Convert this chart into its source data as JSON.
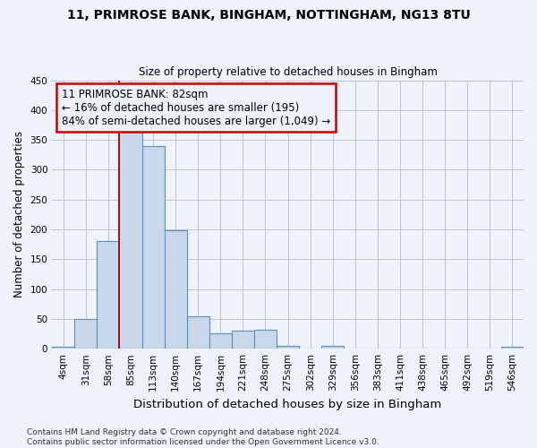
{
  "title1": "11, PRIMROSE BANK, BINGHAM, NOTTINGHAM, NG13 8TU",
  "title2": "Size of property relative to detached houses in Bingham",
  "xlabel": "Distribution of detached houses by size in Bingham",
  "ylabel": "Number of detached properties",
  "categories": [
    "4sqm",
    "31sqm",
    "58sqm",
    "85sqm",
    "113sqm",
    "140sqm",
    "167sqm",
    "194sqm",
    "221sqm",
    "248sqm",
    "275sqm",
    "302sqm",
    "329sqm",
    "356sqm",
    "383sqm",
    "411sqm",
    "438sqm",
    "465sqm",
    "492sqm",
    "519sqm",
    "546sqm"
  ],
  "values": [
    3,
    50,
    181,
    365,
    340,
    199,
    54,
    26,
    31,
    32,
    5,
    0,
    5,
    0,
    0,
    0,
    0,
    0,
    0,
    0,
    3
  ],
  "bar_color": "#c8d8ea",
  "bar_edge_color": "#5a8fc0",
  "vline_color": "#aa0000",
  "annotation_text": "11 PRIMROSE BANK: 82sqm\n← 16% of detached houses are smaller (195)\n84% of semi-detached houses are larger (1,049) →",
  "annotation_box_color": "#cc0000",
  "ylim": [
    0,
    450
  ],
  "yticks": [
    0,
    50,
    100,
    150,
    200,
    250,
    300,
    350,
    400,
    450
  ],
  "footnote1": "Contains HM Land Registry data © Crown copyright and database right 2024.",
  "footnote2": "Contains public sector information licensed under the Open Government Licence v3.0.",
  "bg_color": "#eef2fa",
  "grid_color": "#bbbbcc",
  "title1_fontsize": 10,
  "title2_fontsize": 8.5,
  "ylabel_fontsize": 8.5,
  "xlabel_fontsize": 9.5,
  "tick_fontsize": 7.5,
  "footnote_fontsize": 6.5,
  "ann_fontsize": 8.5
}
